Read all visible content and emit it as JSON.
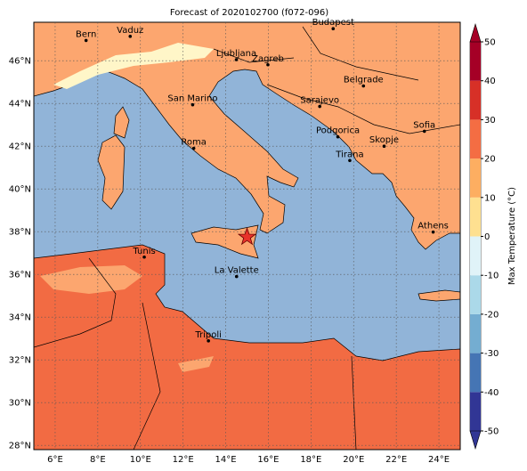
{
  "map": {
    "title": "Forecast of 2020102700 (f072-096)",
    "lonlim": [
      5,
      25
    ],
    "latlim": [
      27.8,
      47.8
    ],
    "lonticks": [
      {
        "value": 6,
        "label": "6°E"
      },
      {
        "value": 8,
        "label": "8°E"
      },
      {
        "value": 10,
        "label": "10°E"
      },
      {
        "value": 12,
        "label": "12°E"
      },
      {
        "value": 14,
        "label": "14°E"
      },
      {
        "value": 16,
        "label": "16°E"
      },
      {
        "value": 18,
        "label": "18°E"
      },
      {
        "value": 20,
        "label": "20°E"
      },
      {
        "value": 22,
        "label": "22°E"
      },
      {
        "value": 24,
        "label": "24°E"
      }
    ],
    "latticks": [
      {
        "value": 28,
        "label": "28°N"
      },
      {
        "value": 30,
        "label": "30°N"
      },
      {
        "value": 32,
        "label": "32°N"
      },
      {
        "value": 34,
        "label": "34°N"
      },
      {
        "value": 36,
        "label": "36°N"
      },
      {
        "value": 38,
        "label": "38°N"
      },
      {
        "value": 40,
        "label": "40°N"
      },
      {
        "value": 42,
        "label": "42°N"
      },
      {
        "value": 44,
        "label": "44°N"
      },
      {
        "value": 46,
        "label": "46°N"
      }
    ],
    "grid": true,
    "cities": [
      {
        "name": "Bern",
        "lon": 7.45,
        "lat": 46.95
      },
      {
        "name": "Vaduz",
        "lon": 9.52,
        "lat": 47.14
      },
      {
        "name": "Budapest",
        "lon": 19.04,
        "lat": 47.5
      },
      {
        "name": "Ljubljana",
        "lon": 14.5,
        "lat": 46.05
      },
      {
        "name": "Zagreb",
        "lon": 15.98,
        "lat": 45.81
      },
      {
        "name": "Belgrade",
        "lon": 20.46,
        "lat": 44.82
      },
      {
        "name": "San Marino",
        "lon": 12.45,
        "lat": 43.94
      },
      {
        "name": "Sarajevo",
        "lon": 18.41,
        "lat": 43.86
      },
      {
        "name": "Sofia",
        "lon": 23.32,
        "lat": 42.7
      },
      {
        "name": "Podgorica",
        "lon": 19.26,
        "lat": 42.44
      },
      {
        "name": "Skopje",
        "lon": 21.43,
        "lat": 42.0
      },
      {
        "name": "Roma",
        "lon": 12.5,
        "lat": 41.9
      },
      {
        "name": "Tirana",
        "lon": 19.82,
        "lat": 41.33
      },
      {
        "name": "Athens",
        "lon": 23.73,
        "lat": 37.98
      },
      {
        "name": "Tunis",
        "lon": 10.18,
        "lat": 36.81
      },
      {
        "name": "La Valette",
        "lon": 14.51,
        "lat": 35.9
      },
      {
        "name": "Tripoli",
        "lon": 13.19,
        "lat": 32.89
      }
    ],
    "star": {
      "lon": 15.0,
      "lat": 37.75,
      "color": "#e8322a"
    },
    "colorbar": {
      "label": "Max Temperature (°C)",
      "lim": [
        -50,
        50
      ],
      "ticks": [
        -50,
        -40,
        -30,
        -20,
        -10,
        0,
        10,
        20,
        30,
        40,
        50
      ],
      "colors": [
        "#313695",
        "#4575b4",
        "#74add1",
        "#abd9e9",
        "#e0f3f8",
        "#fee090",
        "#fdae61",
        "#f46d43",
        "#d73027",
        "#a50026"
      ]
    }
  }
}
